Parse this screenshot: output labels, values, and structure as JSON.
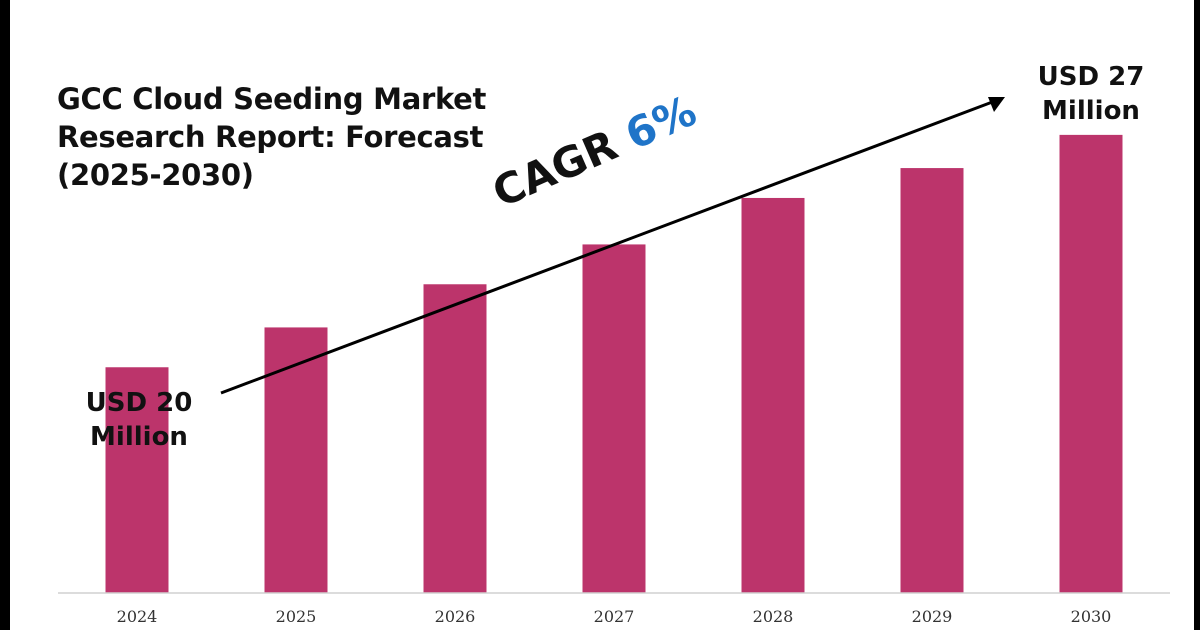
{
  "title_lines": [
    "GCC Cloud Seeding Market",
    "Research Report: Forecast",
    "(2025-2030)"
  ],
  "cagr": {
    "label": "CAGR",
    "value": "6%"
  },
  "start_label": {
    "line1": "USD 20",
    "line2": "Million"
  },
  "end_label": {
    "line1": "USD 27",
    "line2": "Million"
  },
  "colors": {
    "bar": "#bc346b",
    "cagr_value": "#1f74c8",
    "frame": "#000000",
    "axis": "#d0d0d0"
  },
  "chart_data": {
    "type": "bar",
    "categories": [
      "2024",
      "2025",
      "2026",
      "2027",
      "2028",
      "2029",
      "2030"
    ],
    "values": [
      20,
      21.2,
      22.5,
      23.7,
      25.1,
      26.0,
      27
    ],
    "xlabel": "",
    "ylabel": "",
    "ylim": [
      13.2,
      27.9
    ],
    "grid": false,
    "legend": "none"
  }
}
